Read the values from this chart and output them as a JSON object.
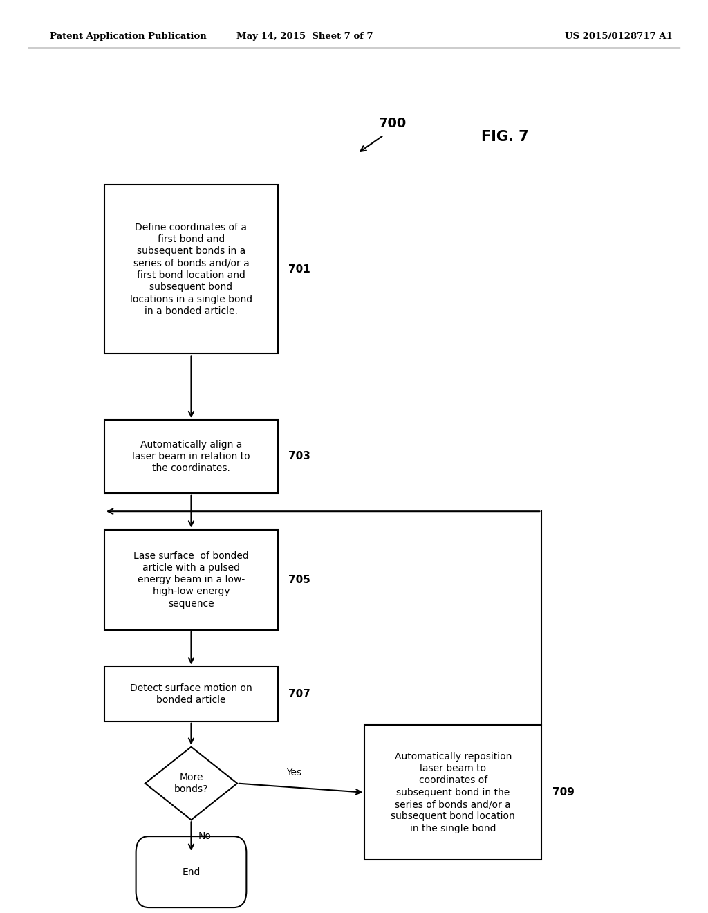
{
  "bg_color": "#ffffff",
  "header_left": "Patent Application Publication",
  "header_mid": "May 14, 2015  Sheet 7 of 7",
  "header_right": "US 2015/0128717 A1",
  "fig_label": "FIG. 7",
  "flow_ref": "700",
  "box701_label": "Define coordinates of a\nfirst bond and\nsubsequent bonds in a\nseries of bonds and/or a\nfirst bond location and\nsubsequent bond\nlocations in a single bond\nin a bonded article.",
  "box703_label": "Automatically align a\nlaser beam in relation to\nthe coordinates.",
  "box705_label": "Lase surface  of bonded\narticle with a pulsed\nenergy beam in a low-\nhigh-low energy\nsequence",
  "box707_label": "Detect surface motion on\nbonded article",
  "box709_label": "Automatically reposition\nlaser beam to\ncoordinates of\nsubsequent bond in the\nseries of bonds and/or a\nsubsequent bond location\nin the single bond",
  "diamond_label": "More\nbonds?",
  "terminal_label": "End",
  "font_size_box": 10,
  "font_size_num": 11,
  "font_size_header": 9.5,
  "font_size_fig": 15
}
